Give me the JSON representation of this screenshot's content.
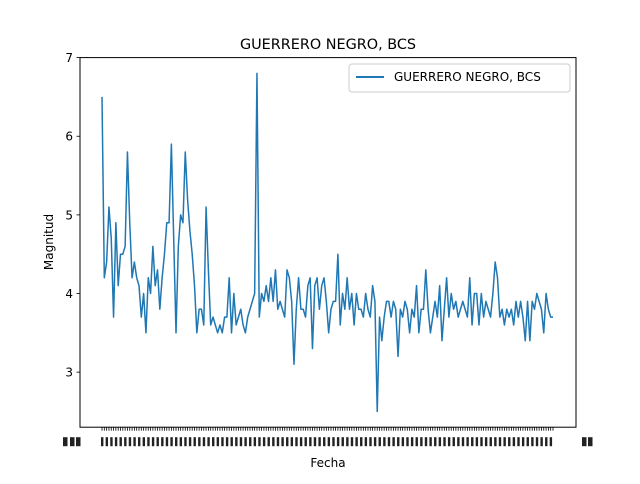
{
  "colors": {
    "series": "#1f77b4",
    "axis": "#000000",
    "legend_border": "#cccccc",
    "background": "#ffffff"
  },
  "chart_data": {
    "type": "line",
    "title": "GUERRERO NEGRO, BCS",
    "xlabel": "Fecha",
    "ylabel": "Magnitud",
    "ylim": [
      2.3,
      7.0
    ],
    "yticks": [
      3,
      4,
      5,
      6,
      7
    ],
    "ytick_labels": [
      "3",
      "4",
      "5",
      "6",
      "7"
    ],
    "x_ticks_note": "~200 categorical date ticks, labels overlap and are illegible",
    "grid": false,
    "legend_placement": "upper right",
    "series": [
      {
        "name": "GUERRERO NEGRO, BCS",
        "values": [
          6.5,
          4.2,
          4.4,
          5.1,
          4.7,
          3.7,
          4.9,
          4.1,
          4.5,
          4.5,
          4.6,
          5.8,
          4.9,
          4.2,
          4.4,
          4.2,
          4.1,
          3.7,
          4.0,
          3.5,
          4.2,
          4.0,
          4.6,
          4.1,
          4.3,
          3.8,
          4.2,
          4.5,
          4.9,
          4.9,
          5.9,
          4.7,
          3.5,
          4.6,
          5.0,
          4.9,
          5.8,
          5.2,
          4.8,
          4.5,
          4.1,
          3.5,
          3.8,
          3.8,
          3.6,
          5.1,
          4.3,
          3.6,
          3.7,
          3.6,
          3.5,
          3.6,
          3.5,
          3.7,
          3.7,
          4.2,
          3.5,
          4.0,
          3.6,
          3.7,
          3.8,
          3.6,
          3.5,
          3.7,
          3.8,
          3.9,
          4.0,
          6.8,
          3.7,
          4.0,
          3.9,
          4.1,
          3.9,
          4.2,
          3.9,
          4.3,
          3.8,
          3.9,
          3.8,
          3.7,
          4.3,
          4.2,
          3.9,
          3.1,
          3.8,
          4.2,
          3.8,
          3.8,
          3.7,
          4.1,
          4.2,
          3.3,
          4.1,
          4.2,
          3.8,
          4.1,
          4.2,
          3.9,
          3.5,
          3.8,
          3.9,
          3.9,
          4.5,
          3.6,
          4.0,
          3.8,
          4.2,
          3.8,
          4.0,
          3.6,
          4.0,
          3.8,
          3.8,
          3.7,
          4.0,
          3.8,
          3.7,
          4.1,
          3.9,
          2.5,
          3.7,
          3.4,
          3.7,
          3.9,
          3.9,
          3.7,
          3.9,
          3.8,
          3.2,
          3.8,
          3.7,
          3.9,
          3.8,
          3.5,
          3.8,
          3.7,
          4.1,
          3.5,
          3.8,
          3.8,
          4.3,
          3.8,
          3.5,
          3.7,
          3.9,
          3.7,
          4.1,
          3.4,
          3.8,
          4.2,
          3.7,
          4.0,
          3.8,
          3.9,
          3.7,
          3.8,
          3.9,
          3.8,
          3.7,
          4.2,
          3.6,
          4.0,
          4.0,
          3.6,
          4.0,
          3.7,
          3.9,
          3.8,
          3.7,
          4.0,
          4.4,
          4.2,
          3.7,
          3.8,
          3.6,
          3.8,
          3.7,
          3.8,
          3.6,
          3.9,
          3.7,
          3.9,
          3.7,
          3.4,
          3.9,
          3.4,
          3.9,
          3.8,
          4.0,
          3.9,
          3.8,
          3.5,
          4.0,
          3.8,
          3.7,
          3.7
        ]
      }
    ]
  }
}
